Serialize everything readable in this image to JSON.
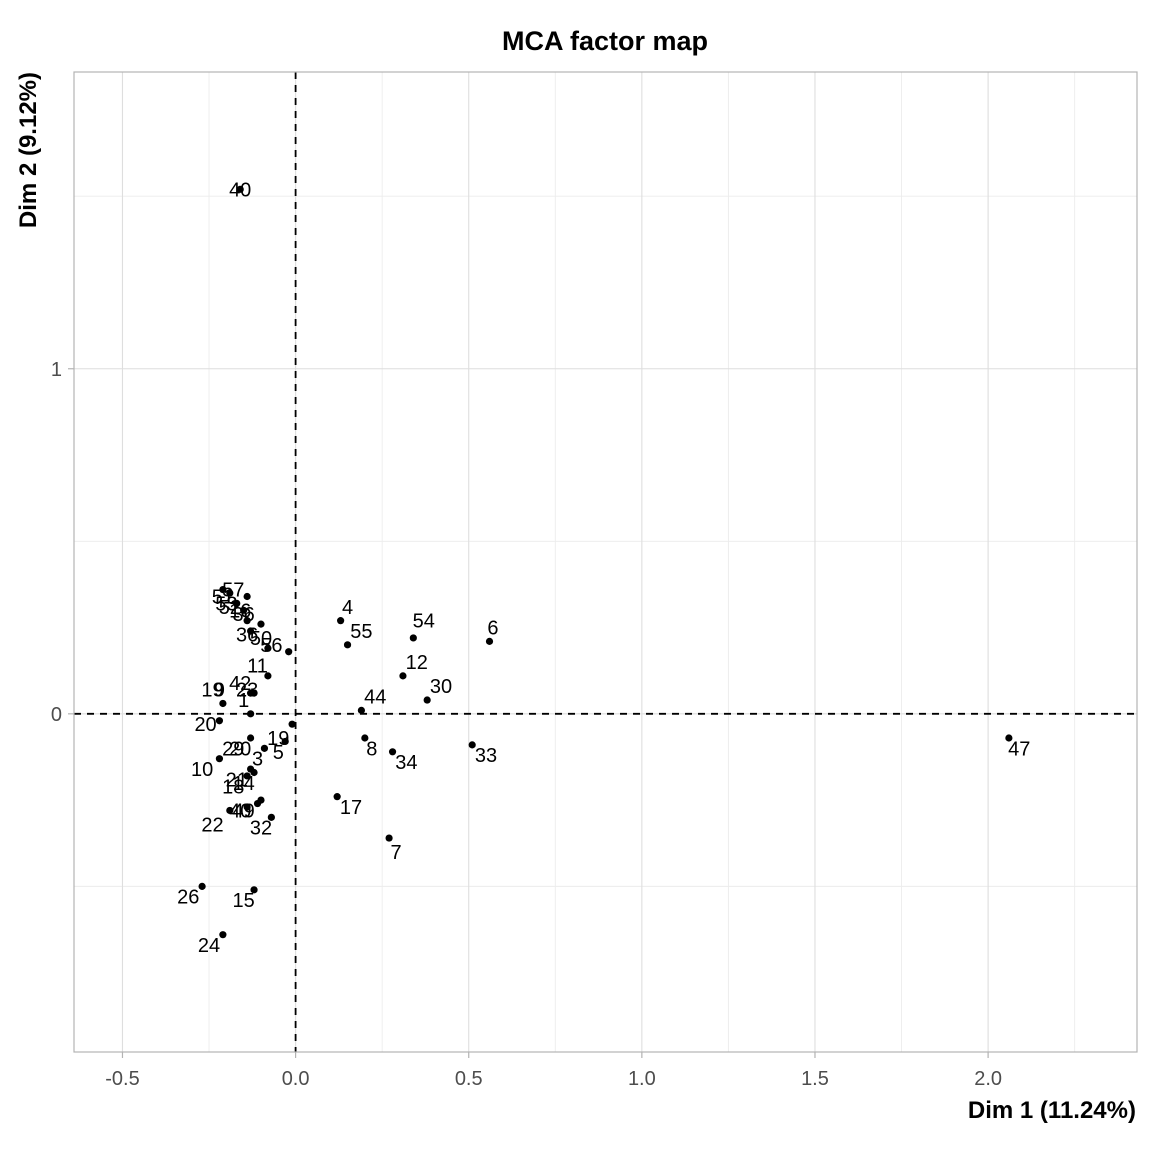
{
  "chart_data": {
    "type": "scatter",
    "title": "MCA factor map",
    "xlabel": "Dim 1 (11.24%)",
    "ylabel": "Dim 2 (9.12%)",
    "xlim": [
      -0.64,
      2.43
    ],
    "ylim": [
      -0.98,
      1.86
    ],
    "xticks": [
      -0.5,
      0.0,
      0.5,
      1.0,
      1.5,
      2.0
    ],
    "xtick_labels": [
      "-0.5",
      "0.0",
      "0.5",
      "1.0",
      "1.5",
      "2.0"
    ],
    "yticks": [
      0,
      1
    ],
    "ytick_labels": [
      "0",
      "1"
    ],
    "grid": true,
    "reference_lines": {
      "x": 0,
      "y": 0,
      "style": "dashed"
    },
    "points": [
      {
        "label": "40",
        "x": -0.16,
        "y": 1.52
      },
      {
        "label": "57",
        "x": -0.18,
        "y": 0.36
      },
      {
        "label": "51",
        "x": -0.21,
        "y": 0.34
      },
      {
        "label": "53",
        "x": -0.2,
        "y": 0.32
      },
      {
        "label": "52",
        "x": -0.19,
        "y": 0.31
      },
      {
        "label": "16",
        "x": -0.16,
        "y": 0.3
      },
      {
        "label": "36",
        "x": -0.15,
        "y": 0.29
      },
      {
        "label": "36",
        "x": -0.14,
        "y": 0.23
      },
      {
        "label": "50",
        "x": -0.1,
        "y": 0.22
      },
      {
        "label": "56",
        "x": -0.07,
        "y": 0.2
      },
      {
        "label": "11",
        "x": -0.11,
        "y": 0.14
      },
      {
        "label": "42",
        "x": -0.16,
        "y": 0.09
      },
      {
        "label": "23",
        "x": -0.14,
        "y": 0.07
      },
      {
        "label": "19",
        "x": -0.24,
        "y": 0.07
      },
      {
        "label": "9",
        "x": -0.22,
        "y": 0.07
      },
      {
        "label": "1",
        "x": -0.15,
        "y": 0.04
      },
      {
        "label": "20",
        "x": -0.26,
        "y": -0.03
      },
      {
        "label": "19",
        "x": -0.05,
        "y": -0.07
      },
      {
        "label": "29",
        "x": -0.18,
        "y": -0.1
      },
      {
        "label": "20",
        "x": -0.16,
        "y": -0.1
      },
      {
        "label": "5",
        "x": -0.05,
        "y": -0.11
      },
      {
        "label": "3",
        "x": -0.11,
        "y": -0.13
      },
      {
        "label": "10",
        "x": -0.27,
        "y": -0.16
      },
      {
        "label": "21",
        "x": -0.17,
        "y": -0.19
      },
      {
        "label": "14",
        "x": -0.15,
        "y": -0.2
      },
      {
        "label": "18",
        "x": -0.18,
        "y": -0.21
      },
      {
        "label": "40",
        "x": -0.16,
        "y": -0.28
      },
      {
        "label": "49",
        "x": -0.15,
        "y": -0.28
      },
      {
        "label": "22",
        "x": -0.24,
        "y": -0.32
      },
      {
        "label": "32",
        "x": -0.1,
        "y": -0.33
      },
      {
        "label": "26",
        "x": -0.31,
        "y": -0.53
      },
      {
        "label": "15",
        "x": -0.15,
        "y": -0.54
      },
      {
        "label": "24",
        "x": -0.25,
        "y": -0.67
      },
      {
        "label": "4",
        "x": 0.15,
        "y": 0.31
      },
      {
        "label": "55",
        "x": 0.19,
        "y": 0.24
      },
      {
        "label": "54",
        "x": 0.37,
        "y": 0.27
      },
      {
        "label": "6",
        "x": 0.57,
        "y": 0.25
      },
      {
        "label": "12",
        "x": 0.35,
        "y": 0.15
      },
      {
        "label": "30",
        "x": 0.42,
        "y": 0.08
      },
      {
        "label": "44",
        "x": 0.23,
        "y": 0.05
      },
      {
        "label": "8",
        "x": 0.22,
        "y": -0.1
      },
      {
        "label": "34",
        "x": 0.32,
        "y": -0.14
      },
      {
        "label": "33",
        "x": 0.55,
        "y": -0.12
      },
      {
        "label": "17",
        "x": 0.16,
        "y": -0.27
      },
      {
        "label": "7",
        "x": 0.29,
        "y": -0.4
      },
      {
        "label": "47",
        "x": 2.09,
        "y": -0.1
      }
    ],
    "markers": [
      [
        -0.16,
        1.52
      ],
      [
        -0.21,
        0.36
      ],
      [
        -0.19,
        0.35
      ],
      [
        -0.14,
        0.34
      ],
      [
        -0.17,
        0.32
      ],
      [
        -0.15,
        0.3
      ],
      [
        -0.14,
        0.27
      ],
      [
        -0.1,
        0.26
      ],
      [
        -0.13,
        0.24
      ],
      [
        -0.08,
        0.19
      ],
      [
        -0.02,
        0.18
      ],
      [
        -0.08,
        0.11
      ],
      [
        -0.12,
        0.06
      ],
      [
        -0.13,
        0.06
      ],
      [
        -0.21,
        0.03
      ],
      [
        -0.13,
        0.0
      ],
      [
        -0.22,
        -0.02
      ],
      [
        -0.01,
        -0.03
      ],
      [
        -0.03,
        -0.08
      ],
      [
        -0.13,
        -0.07
      ],
      [
        -0.09,
        -0.1
      ],
      [
        -0.22,
        -0.13
      ],
      [
        -0.13,
        -0.16
      ],
      [
        -0.12,
        -0.17
      ],
      [
        -0.14,
        -0.18
      ],
      [
        -0.1,
        -0.25
      ],
      [
        -0.11,
        -0.26
      ],
      [
        -0.14,
        -0.27
      ],
      [
        -0.19,
        -0.28
      ],
      [
        -0.07,
        -0.3
      ],
      [
        -0.27,
        -0.5
      ],
      [
        -0.12,
        -0.51
      ],
      [
        -0.21,
        -0.64
      ],
      [
        0.13,
        0.27
      ],
      [
        0.15,
        0.2
      ],
      [
        0.34,
        0.22
      ],
      [
        0.56,
        0.21
      ],
      [
        0.31,
        0.11
      ],
      [
        0.38,
        0.04
      ],
      [
        0.19,
        0.01
      ],
      [
        0.2,
        -0.07
      ],
      [
        0.28,
        -0.11
      ],
      [
        0.51,
        -0.09
      ],
      [
        0.12,
        -0.24
      ],
      [
        0.27,
        -0.36
      ],
      [
        2.06,
        -0.07
      ]
    ]
  }
}
